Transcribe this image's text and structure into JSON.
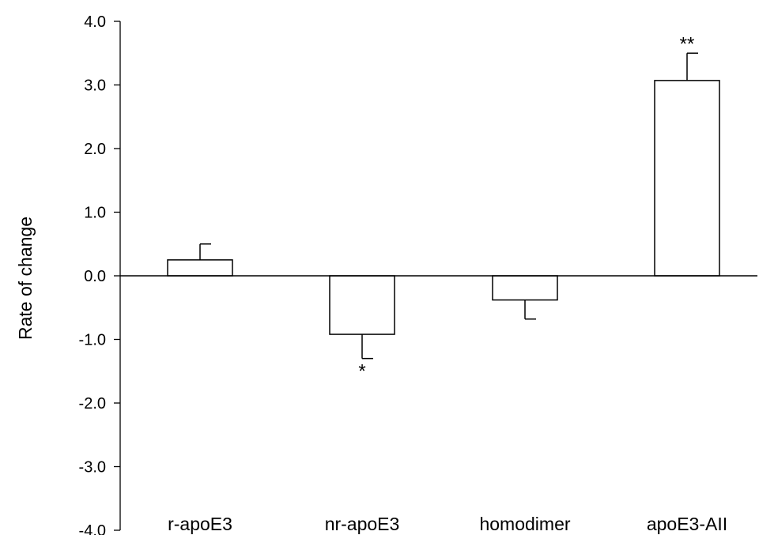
{
  "chart_data": {
    "type": "bar",
    "title": "",
    "xlabel": "",
    "ylabel": "Rate of change",
    "ylim": [
      -4.0,
      4.0
    ],
    "y_ticks": [
      "4.0",
      "3.0",
      "2.0",
      "1.0",
      "0.0",
      "-1.0",
      "-2.0",
      "-3.0",
      "-4.0"
    ],
    "y_tick_values": [
      4,
      3,
      2,
      1,
      0,
      -1,
      -2,
      -3,
      -4
    ],
    "categories": [
      "r-apoE3",
      "nr-apoE3",
      "homodimer",
      "apoE3-AII"
    ],
    "values": [
      0.25,
      -0.92,
      -0.38,
      3.07
    ],
    "error": [
      0.25,
      0.38,
      0.3,
      0.43
    ],
    "significance": [
      "",
      "*",
      "",
      "**"
    ],
    "grid": false,
    "bar_fill": "#ffffff",
    "bar_stroke": "#000000"
  }
}
